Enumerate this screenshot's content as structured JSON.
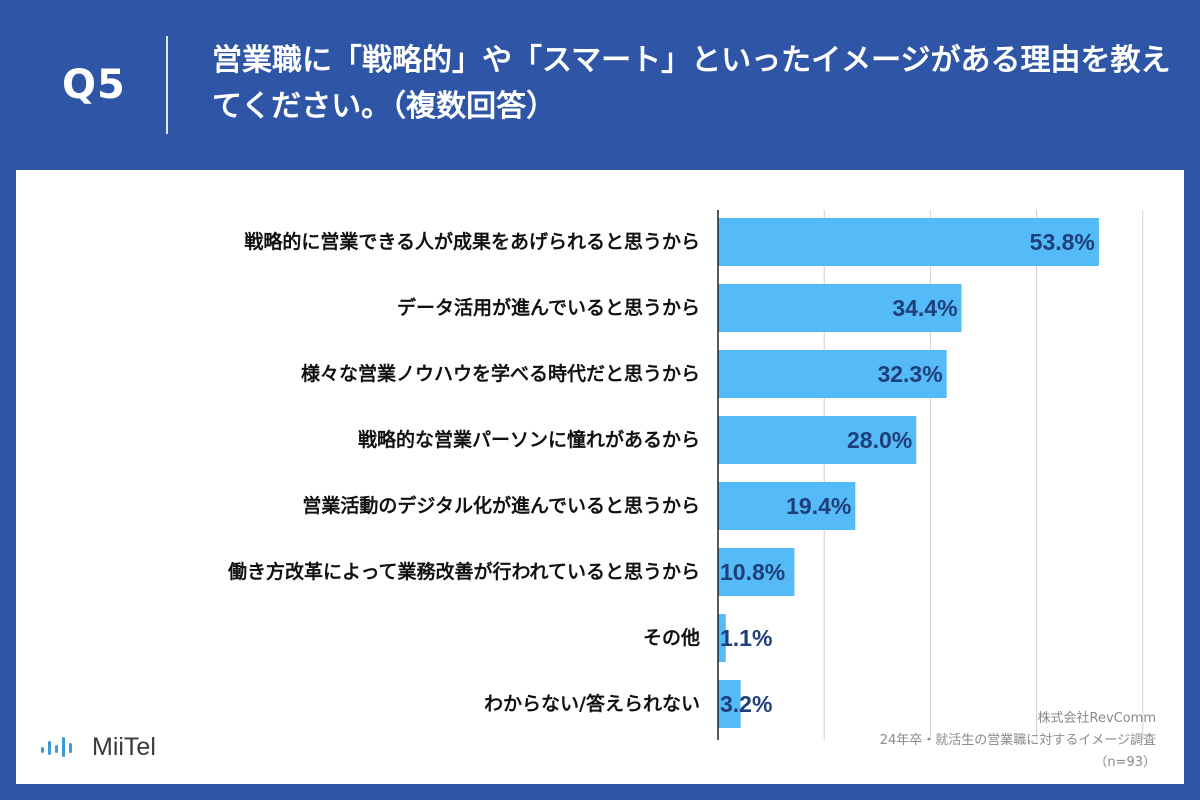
{
  "question": {
    "label": "Q5",
    "text": "営業職に「戦略的」や「スマート」といったイメージがある理由を教えてください。（複数回答）"
  },
  "colors": {
    "background": "#2f56a6",
    "bar": "#55bbf8",
    "value_label": "#1f3f7a",
    "grid": "#d0d0d0"
  },
  "chart_data": {
    "type": "bar",
    "orientation": "horizontal",
    "categories": [
      "戦略的に営業できる人が成果をあげられると思うから",
      "データ活用が進んでいると思うから",
      "様々な営業ノウハウを学べる時代だと思うから",
      "戦略的な営業パーソンに憧れがあるから",
      "営業活動のデジタル化が進んでいると思うから",
      "働き方改革によって業務改善が行われていると思うから",
      "その他",
      "わからない/答えられない"
    ],
    "values": [
      53.8,
      34.4,
      32.3,
      28.0,
      19.4,
      10.8,
      1.1,
      3.2
    ],
    "value_labels": [
      "53.8%",
      "34.4%",
      "32.3%",
      "28.0%",
      "19.4%",
      "10.8%",
      "1.1%",
      "3.2%"
    ],
    "xlim": [
      0,
      60
    ],
    "grid_step": 15,
    "grid": true,
    "title": "営業職に「戦略的」や「スマート」といったイメージがある理由を教えてください。（複数回答）"
  },
  "logo": {
    "name": "MiiTel",
    "icon": "audio-bars-icon"
  },
  "source": {
    "company": "株式会社RevComm",
    "survey": "24年卒・就活生の営業職に対するイメージ調査",
    "sample": "（n=93）"
  }
}
